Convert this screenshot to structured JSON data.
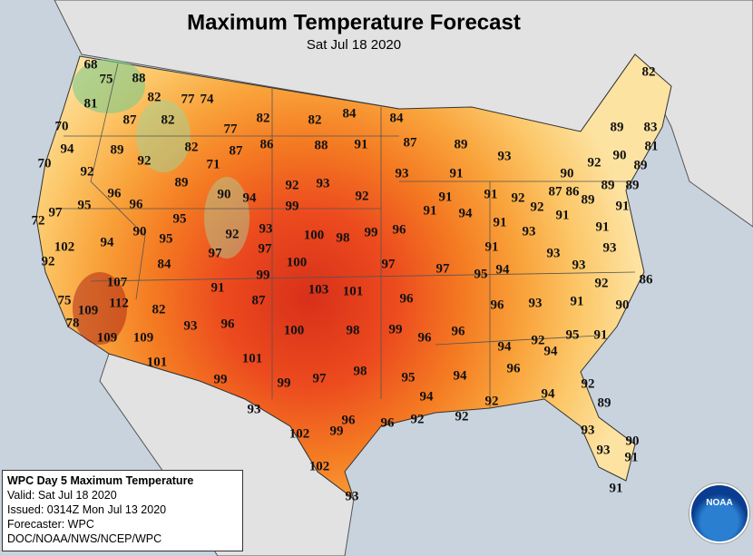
{
  "title": "Maximum Temperature Forecast",
  "subtitle": "Sat Jul 18 2020",
  "info": {
    "heading": "WPC Day 5 Maximum Temperature",
    "valid": "Valid: Sat Jul 18 2020",
    "issued": "Issued: 0314Z Mon Jul 13 2020",
    "forecaster": "Forecaster: WPC",
    "source": "DOC/NOAA/NWS/NCEP/WPC"
  },
  "logo": "NOAA",
  "temperatures": [
    68,
    75,
    88,
    81,
    82,
    77,
    74,
    70,
    87,
    82,
    82,
    82,
    84,
    84,
    94,
    89,
    92,
    82,
    77,
    87,
    86,
    88,
    91,
    87,
    89,
    70,
    92,
    71,
    93,
    91,
    93,
    89,
    83,
    81,
    90,
    89,
    92,
    90,
    82,
    89,
    92,
    93,
    92,
    91,
    91,
    92,
    87,
    86,
    89,
    89,
    89,
    96,
    96,
    90,
    94,
    99,
    91,
    94,
    92,
    91,
    91,
    97,
    95,
    95,
    72,
    91,
    93,
    91,
    93,
    93,
    100,
    98,
    99,
    96,
    102,
    94,
    90,
    95,
    92,
    97,
    91,
    93,
    97,
    92,
    84,
    100,
    97,
    97,
    95,
    94,
    93,
    99,
    107,
    91,
    103,
    101,
    96,
    92,
    86,
    75,
    109,
    112,
    87,
    82,
    96,
    93,
    91,
    90,
    78,
    93,
    96,
    100,
    98,
    99,
    96,
    96,
    109,
    109,
    94,
    92,
    95,
    91,
    94,
    101,
    101,
    96,
    99,
    99,
    97,
    98,
    95,
    94,
    94,
    92,
    94,
    92,
    89,
    93,
    96,
    99,
    92,
    96,
    92,
    102,
    93,
    90,
    91,
    93,
    102,
    93,
    91
  ]
}
